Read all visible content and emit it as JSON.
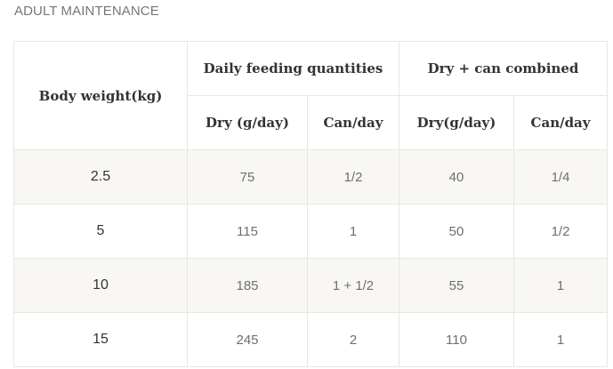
{
  "section_title": "ADULT MAINTENANCE",
  "table": {
    "header": {
      "body_weight": "Body weight(kg)",
      "group_daily": "Daily feeding quantities",
      "group_combined": "Dry + can combined",
      "daily_dry": "Dry (g/day)",
      "daily_can": "Can/day",
      "combined_dry": "Dry(g/day)",
      "combined_can": "Can/day"
    },
    "rows": [
      {
        "weight": "2.5",
        "daily_dry": "75",
        "daily_can": "1/2",
        "combined_dry": "40",
        "combined_can": "1/4"
      },
      {
        "weight": "5",
        "daily_dry": "115",
        "daily_can": "1",
        "combined_dry": "50",
        "combined_can": "1/2"
      },
      {
        "weight": "10",
        "daily_dry": "185",
        "daily_can": "1 + 1/2",
        "combined_dry": "55",
        "combined_can": "1"
      },
      {
        "weight": "15",
        "daily_dry": "245",
        "daily_can": "2",
        "combined_dry": "110",
        "combined_can": "1"
      }
    ]
  }
}
